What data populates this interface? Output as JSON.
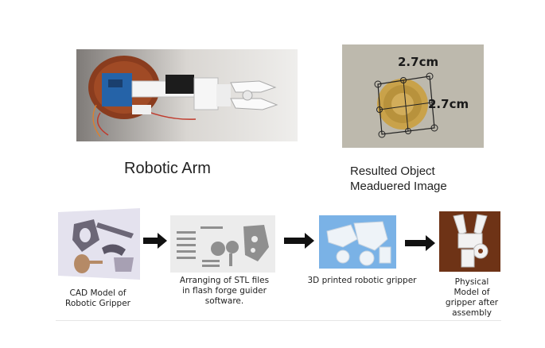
{
  "top": {
    "robotic_arm_caption": "Robotic Arm",
    "result_caption_line1": "Resulted Object",
    "result_caption_line2": "Meaduered Image",
    "measure_top": "2.7cm",
    "measure_right": "2.7cm"
  },
  "flow": {
    "steps": [
      {
        "caption_lines": [
          "CAD Model of",
          "Robotic Gripper"
        ]
      },
      {
        "caption_lines": [
          "Arranging of STL files",
          "in flash forge guider",
          "software."
        ]
      },
      {
        "caption_lines": [
          "3D printed robotic gripper"
        ]
      },
      {
        "caption_lines": [
          "Physical",
          "Model of",
          "gripper after",
          "assembly"
        ]
      }
    ]
  },
  "colors": {
    "text": "#222222",
    "arrow": "#111111",
    "coin_gold": "#c9a24a",
    "board_blue": "#1f5fa8",
    "print_blue": "#6fa9e0",
    "wood": "#7a3a1a"
  }
}
